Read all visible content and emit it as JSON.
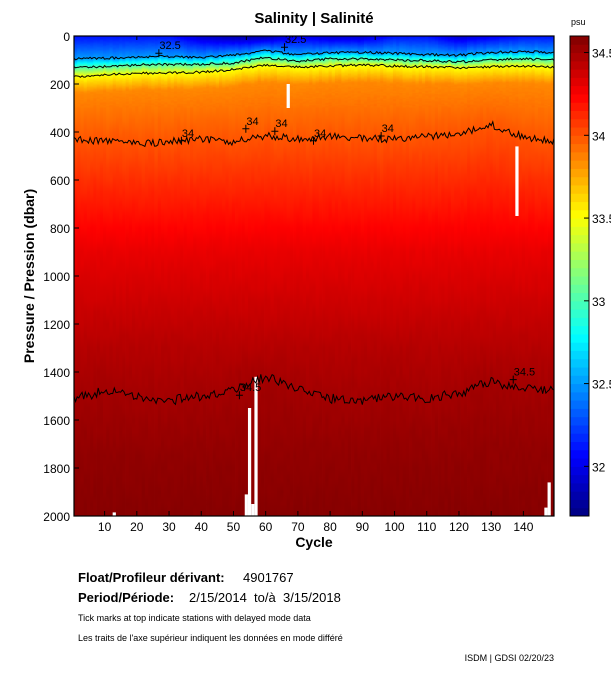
{
  "chart_data": {
    "type": "heatmap",
    "title": "Salinity | Salinité",
    "xlabel": "Cycle",
    "ylabel": "Pressure / Pression (dbar)",
    "colorbar_label": "psu",
    "xlim": [
      0.5,
      149.5
    ],
    "ylim": [
      2000,
      0
    ],
    "y_inverted": true,
    "clim": [
      31.7,
      34.6
    ],
    "colormap": "jet",
    "x_ticks": [
      10,
      20,
      30,
      40,
      50,
      60,
      70,
      80,
      90,
      100,
      110,
      120,
      130,
      140
    ],
    "y_ticks": [
      0,
      200,
      400,
      600,
      800,
      1000,
      1200,
      1400,
      1600,
      1800,
      2000
    ],
    "colorbar_ticks": [
      32,
      32.5,
      33,
      33.5,
      34,
      34.5
    ],
    "sample_cycles": [
      1,
      10,
      20,
      30,
      40,
      50,
      60,
      70,
      80,
      90,
      100,
      110,
      120,
      130,
      140,
      149
    ],
    "surface_salinity": [
      32.1,
      32.1,
      32.1,
      32.1,
      31.9,
      31.8,
      31.8,
      32.0,
      31.9,
      31.9,
      32.1,
      32.1,
      31.9,
      32.0,
      32.1,
      32.1
    ],
    "contours": [
      {
        "level": 32.5,
        "pressure": [
          95,
          92,
          88,
          85,
          88,
          80,
          62,
          78,
          70,
          68,
          72,
          78,
          80,
          68,
          65,
          68
        ]
      },
      {
        "level": 33,
        "pressure": [
          130,
          128,
          120,
          118,
          118,
          112,
          90,
          105,
          95,
          95,
          100,
          102,
          108,
          100,
          95,
          100
        ]
      },
      {
        "level": 33.5,
        "pressure": [
          170,
          160,
          155,
          155,
          150,
          140,
          120,
          130,
          125,
          120,
          125,
          128,
          132,
          128,
          125,
          130
        ]
      },
      {
        "level": 34,
        "pressure": [
          430,
          440,
          450,
          440,
          430,
          440,
          415,
          430,
          420,
          425,
          430,
          420,
          410,
          370,
          420,
          440
        ]
      },
      {
        "level": 34.5,
        "pressure": [
          1510,
          1480,
          1500,
          1520,
          1500,
          1480,
          1420,
          1470,
          1510,
          1520,
          1500,
          1510,
          1490,
          1440,
          1470,
          1480
        ]
      }
    ],
    "fixed_profile": [
      {
        "pressure": 900,
        "salinity": 34.3
      },
      {
        "pressure": 1300,
        "salinity": 34.45
      },
      {
        "pressure": 1750,
        "salinity": 34.55
      },
      {
        "pressure": 2000,
        "salinity": 34.58
      }
    ],
    "contour_labels": [
      {
        "text": "32.5",
        "cycle": 27,
        "pressure": 55
      },
      {
        "text": "32.5",
        "cycle": 66,
        "pressure": 30
      },
      {
        "text": "34",
        "cycle": 34,
        "pressure": 420
      },
      {
        "text": "34",
        "cycle": 54,
        "pressure": 370
      },
      {
        "text": "34",
        "cycle": 63,
        "pressure": 380
      },
      {
        "text": "34",
        "cycle": 75,
        "pressure": 420
      },
      {
        "text": "34",
        "cycle": 96,
        "pressure": 400
      },
      {
        "text": "34.5",
        "cycle": 52,
        "pressure": 1480
      },
      {
        "text": "34.5",
        "cycle": 137,
        "pressure": 1415
      }
    ],
    "missing": [
      {
        "cycle": 13,
        "from": 1985,
        "to": 2000
      },
      {
        "cycle": 54,
        "from": 1910,
        "to": 2000
      },
      {
        "cycle": 55,
        "from": 1550,
        "to": 2000
      },
      {
        "cycle": 56,
        "from": 1950,
        "to": 2000
      },
      {
        "cycle": 57,
        "from": 1420,
        "to": 2000
      },
      {
        "cycle": 67,
        "from": 200,
        "to": 300
      },
      {
        "cycle": 138,
        "from": 460,
        "to": 750
      },
      {
        "cycle": 147,
        "from": 1965,
        "to": 2000
      },
      {
        "cycle": 148,
        "from": 1860,
        "to": 2000
      }
    ],
    "delayed_mode_cycles": [
      20,
      54,
      94
    ]
  },
  "info": {
    "float_label": "Float/Profileur dérivant:",
    "float_id": "4901767",
    "period_label": "Period/Période:",
    "period_value": "2/15/2014  to/à  3/15/2018",
    "note_en": "Tick marks at top indicate stations with delayed mode data",
    "note_fr": "Les traits de l'axe supérieur indiquent les données en mode différé",
    "credit": "ISDM | GDSI 02/20/23"
  }
}
